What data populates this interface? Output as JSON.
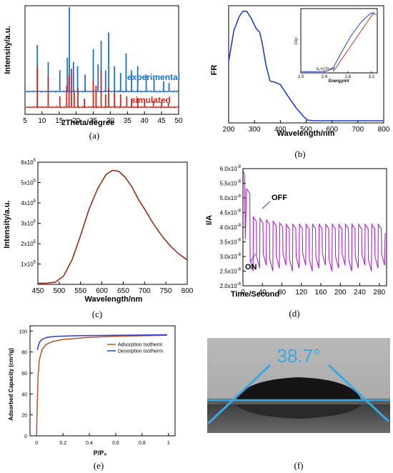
{
  "chart_data": [
    {
      "id": "a",
      "type": "line",
      "caption": "(a)",
      "xlabel": "2Theta/degree",
      "ylabel": "Intensity/a.u.",
      "xlim": [
        5,
        50
      ],
      "xticks": [
        5,
        10,
        15,
        20,
        25,
        30,
        35,
        40,
        45,
        50
      ],
      "series": [
        {
          "name": "experimental",
          "color": "#1f6fd1",
          "peaks": [
            [
              8.6,
              0.55
            ],
            [
              11.8,
              0.35
            ],
            [
              15.2,
              0.25
            ],
            [
              17.4,
              0.4
            ],
            [
              18.0,
              1.0
            ],
            [
              19.2,
              0.35
            ],
            [
              20.4,
              0.3
            ],
            [
              22.6,
              0.2
            ],
            [
              25.0,
              0.5
            ],
            [
              26.4,
              0.32
            ],
            [
              27.3,
              0.6
            ],
            [
              28.6,
              0.25
            ],
            [
              29.5,
              0.7
            ],
            [
              31.2,
              0.3
            ],
            [
              33.0,
              0.22
            ],
            [
              34.6,
              0.45
            ],
            [
              36.2,
              0.25
            ],
            [
              38.0,
              0.3
            ],
            [
              40.5,
              0.2
            ],
            [
              42.8,
              0.15
            ],
            [
              45.6,
              0.12
            ],
            [
              47.2,
              0.1
            ]
          ]
        },
        {
          "name": "simulated",
          "color": "#d0281f",
          "peaks": [
            [
              8.6,
              0.95
            ],
            [
              11.8,
              0.7
            ],
            [
              15.2,
              0.25
            ],
            [
              17.2,
              0.5
            ],
            [
              17.9,
              0.75
            ],
            [
              18.6,
              0.9
            ],
            [
              19.4,
              0.35
            ],
            [
              20.5,
              0.45
            ],
            [
              22.4,
              0.2
            ],
            [
              25.0,
              0.6
            ],
            [
              25.8,
              0.5
            ],
            [
              27.3,
              0.85
            ],
            [
              28.6,
              0.3
            ],
            [
              29.5,
              0.45
            ],
            [
              31.2,
              0.35
            ],
            [
              33.0,
              0.3
            ],
            [
              34.8,
              0.25
            ],
            [
              36.2,
              0.2
            ],
            [
              38.0,
              0.22
            ],
            [
              40.0,
              0.18
            ],
            [
              42.6,
              0.15
            ],
            [
              45.0,
              0.12
            ],
            [
              47.0,
              0.1
            ]
          ]
        }
      ]
    },
    {
      "id": "b",
      "type": "line",
      "caption": "(b)",
      "xlabel": "Wavelength/nm",
      "ylabel": "FR",
      "xlim": [
        200,
        800
      ],
      "xticks": [
        200,
        300,
        400,
        500,
        600,
        700,
        800
      ],
      "series": [
        {
          "color": "#1f3fd1",
          "points": [
            [
              200,
              4.3
            ],
            [
              220,
              6.5
            ],
            [
              240,
              7.5
            ],
            [
              255,
              7.9
            ],
            [
              270,
              7.9
            ],
            [
              290,
              7.3
            ],
            [
              305,
              6.7
            ],
            [
              320,
              6.4
            ],
            [
              330,
              5.6
            ],
            [
              345,
              4.0
            ],
            [
              360,
              2.9
            ],
            [
              380,
              2.8
            ],
            [
              400,
              2.65
            ],
            [
              430,
              1.8
            ],
            [
              460,
              1.0
            ],
            [
              490,
              0.35
            ],
            [
              505,
              0.1
            ],
            [
              530,
              0.05
            ],
            [
              800,
              0.05
            ]
          ]
        }
      ],
      "inset": {
        "xlabel": "Energy/eV",
        "ylabel": "FR²",
        "xlim": [
          2.0,
          3.3
        ],
        "xticks": [
          2.0,
          2.4,
          2.8,
          3.2
        ],
        "annotation": "E₉=2.55 eV",
        "series": [
          {
            "color": "#1f3fd1",
            "points": [
              [
                2.0,
                0.02
              ],
              [
                2.3,
                0.02
              ],
              [
                2.45,
                0.03
              ],
              [
                2.55,
                0.08
              ],
              [
                2.7,
                0.35
              ],
              [
                2.85,
                0.6
              ],
              [
                3.0,
                0.8
              ],
              [
                3.1,
                0.9
              ],
              [
                3.2,
                0.98
              ],
              [
                3.28,
                0.95
              ]
            ]
          },
          {
            "color": "#c0392b",
            "points": [
              [
                2.55,
                0.02
              ],
              [
                3.25,
                1.0
              ]
            ]
          }
        ]
      }
    },
    {
      "id": "c",
      "type": "line",
      "caption": "(c)",
      "xlabel": "Wavelength/nm",
      "ylabel": "Intensity/a.u.",
      "xlim": [
        450,
        800
      ],
      "ylim": [
        0,
        600000
      ],
      "xticks": [
        450,
        500,
        550,
        600,
        650,
        700,
        750,
        800
      ],
      "yticks": [
        {
          "v": 100000,
          "m": "1",
          "e": "5"
        },
        {
          "v": 200000,
          "m": "2",
          "e": "5"
        },
        {
          "v": 300000,
          "m": "3",
          "e": "5"
        },
        {
          "v": 400000,
          "m": "4",
          "e": "5"
        },
        {
          "v": 500000,
          "m": "5",
          "e": "5"
        },
        {
          "v": 600000,
          "m": "6",
          "e": "5"
        }
      ],
      "tick_suffix": "x10",
      "series": [
        {
          "color": "#9b2a18",
          "points": [
            [
              450,
              5000
            ],
            [
              470,
              6000
            ],
            [
              490,
              10000
            ],
            [
              510,
              40000
            ],
            [
              530,
              120000
            ],
            [
              550,
              240000
            ],
            [
              570,
              370000
            ],
            [
              590,
              470000
            ],
            [
              610,
              540000
            ],
            [
              625,
              560000
            ],
            [
              640,
              555000
            ],
            [
              655,
              525000
            ],
            [
              670,
              480000
            ],
            [
              685,
              420000
            ],
            [
              700,
              370000
            ],
            [
              720,
              300000
            ],
            [
              740,
              240000
            ],
            [
              760,
              190000
            ],
            [
              780,
              150000
            ],
            [
              800,
              120000
            ]
          ]
        }
      ]
    },
    {
      "id": "d",
      "type": "line",
      "caption": "(d)",
      "xlabel": "Time/Second",
      "ylabel": "I/A",
      "xlim": [
        0,
        295
      ],
      "ylim": [
        2e-08,
        6e-08
      ],
      "xticks": [
        0,
        40,
        80,
        120,
        160,
        200,
        240,
        280
      ],
      "yticks": [
        {
          "v": 2e-08,
          "m": "2.0",
          "e": "-8"
        },
        {
          "v": 2.5e-08,
          "m": "2.5",
          "e": "-8"
        },
        {
          "v": 3e-08,
          "m": "3.0",
          "e": "-8"
        },
        {
          "v": 3.5e-08,
          "m": "3.5",
          "e": "-8"
        },
        {
          "v": 4e-08,
          "m": "4.0",
          "e": "-8"
        },
        {
          "v": 4.5e-08,
          "m": "4.5",
          "e": "-8"
        },
        {
          "v": 5e-08,
          "m": "5.0",
          "e": "-8"
        },
        {
          "v": 5.5e-08,
          "m": "5.5",
          "e": "-8"
        },
        {
          "v": 6e-08,
          "m": "6.0",
          "e": "-8"
        }
      ],
      "tick_suffix": "x10",
      "cycles": {
        "start": 8,
        "period": 13.5,
        "count": 21,
        "on_high": 4.4e-08,
        "off_low": 2.5e-08
      },
      "annotations": [
        "OFF",
        "ON"
      ],
      "series": [
        {
          "color": "#b01ed6"
        }
      ]
    },
    {
      "id": "e",
      "type": "line",
      "caption": "(e)",
      "xlabel": "P/P₀",
      "ylabel": "Adsorbed Capacity (cm³/g)",
      "xlim": [
        -0.05,
        1.05
      ],
      "ylim": [
        0,
        105
      ],
      "xticks": [
        0.0,
        0.2,
        0.4,
        0.6,
        0.8,
        1.0
      ],
      "yticks": [
        0,
        20,
        40,
        60,
        80,
        100
      ],
      "series": [
        {
          "name": "Adsorption Isotherm",
          "color": "#b5532e",
          "points": [
            [
              0.0,
              0
            ],
            [
              0.005,
              30
            ],
            [
              0.01,
              55
            ],
            [
              0.02,
              72
            ],
            [
              0.04,
              82
            ],
            [
              0.07,
              87
            ],
            [
              0.12,
              90
            ],
            [
              0.2,
              92
            ],
            [
              0.4,
              94
            ],
            [
              0.6,
              95
            ],
            [
              0.8,
              95.5
            ],
            [
              0.99,
              96
            ]
          ]
        },
        {
          "name": "Desorption Isotherm",
          "color": "#2d3bd6",
          "points": [
            [
              0.005,
              82
            ],
            [
              0.02,
              89
            ],
            [
              0.04,
              92
            ],
            [
              0.08,
              94
            ],
            [
              0.15,
              95
            ],
            [
              0.3,
              95.5
            ],
            [
              0.6,
              96
            ],
            [
              0.99,
              96.5
            ]
          ]
        }
      ]
    },
    {
      "id": "f",
      "type": "image",
      "caption": "(f)",
      "annotation": "38.7°"
    }
  ]
}
